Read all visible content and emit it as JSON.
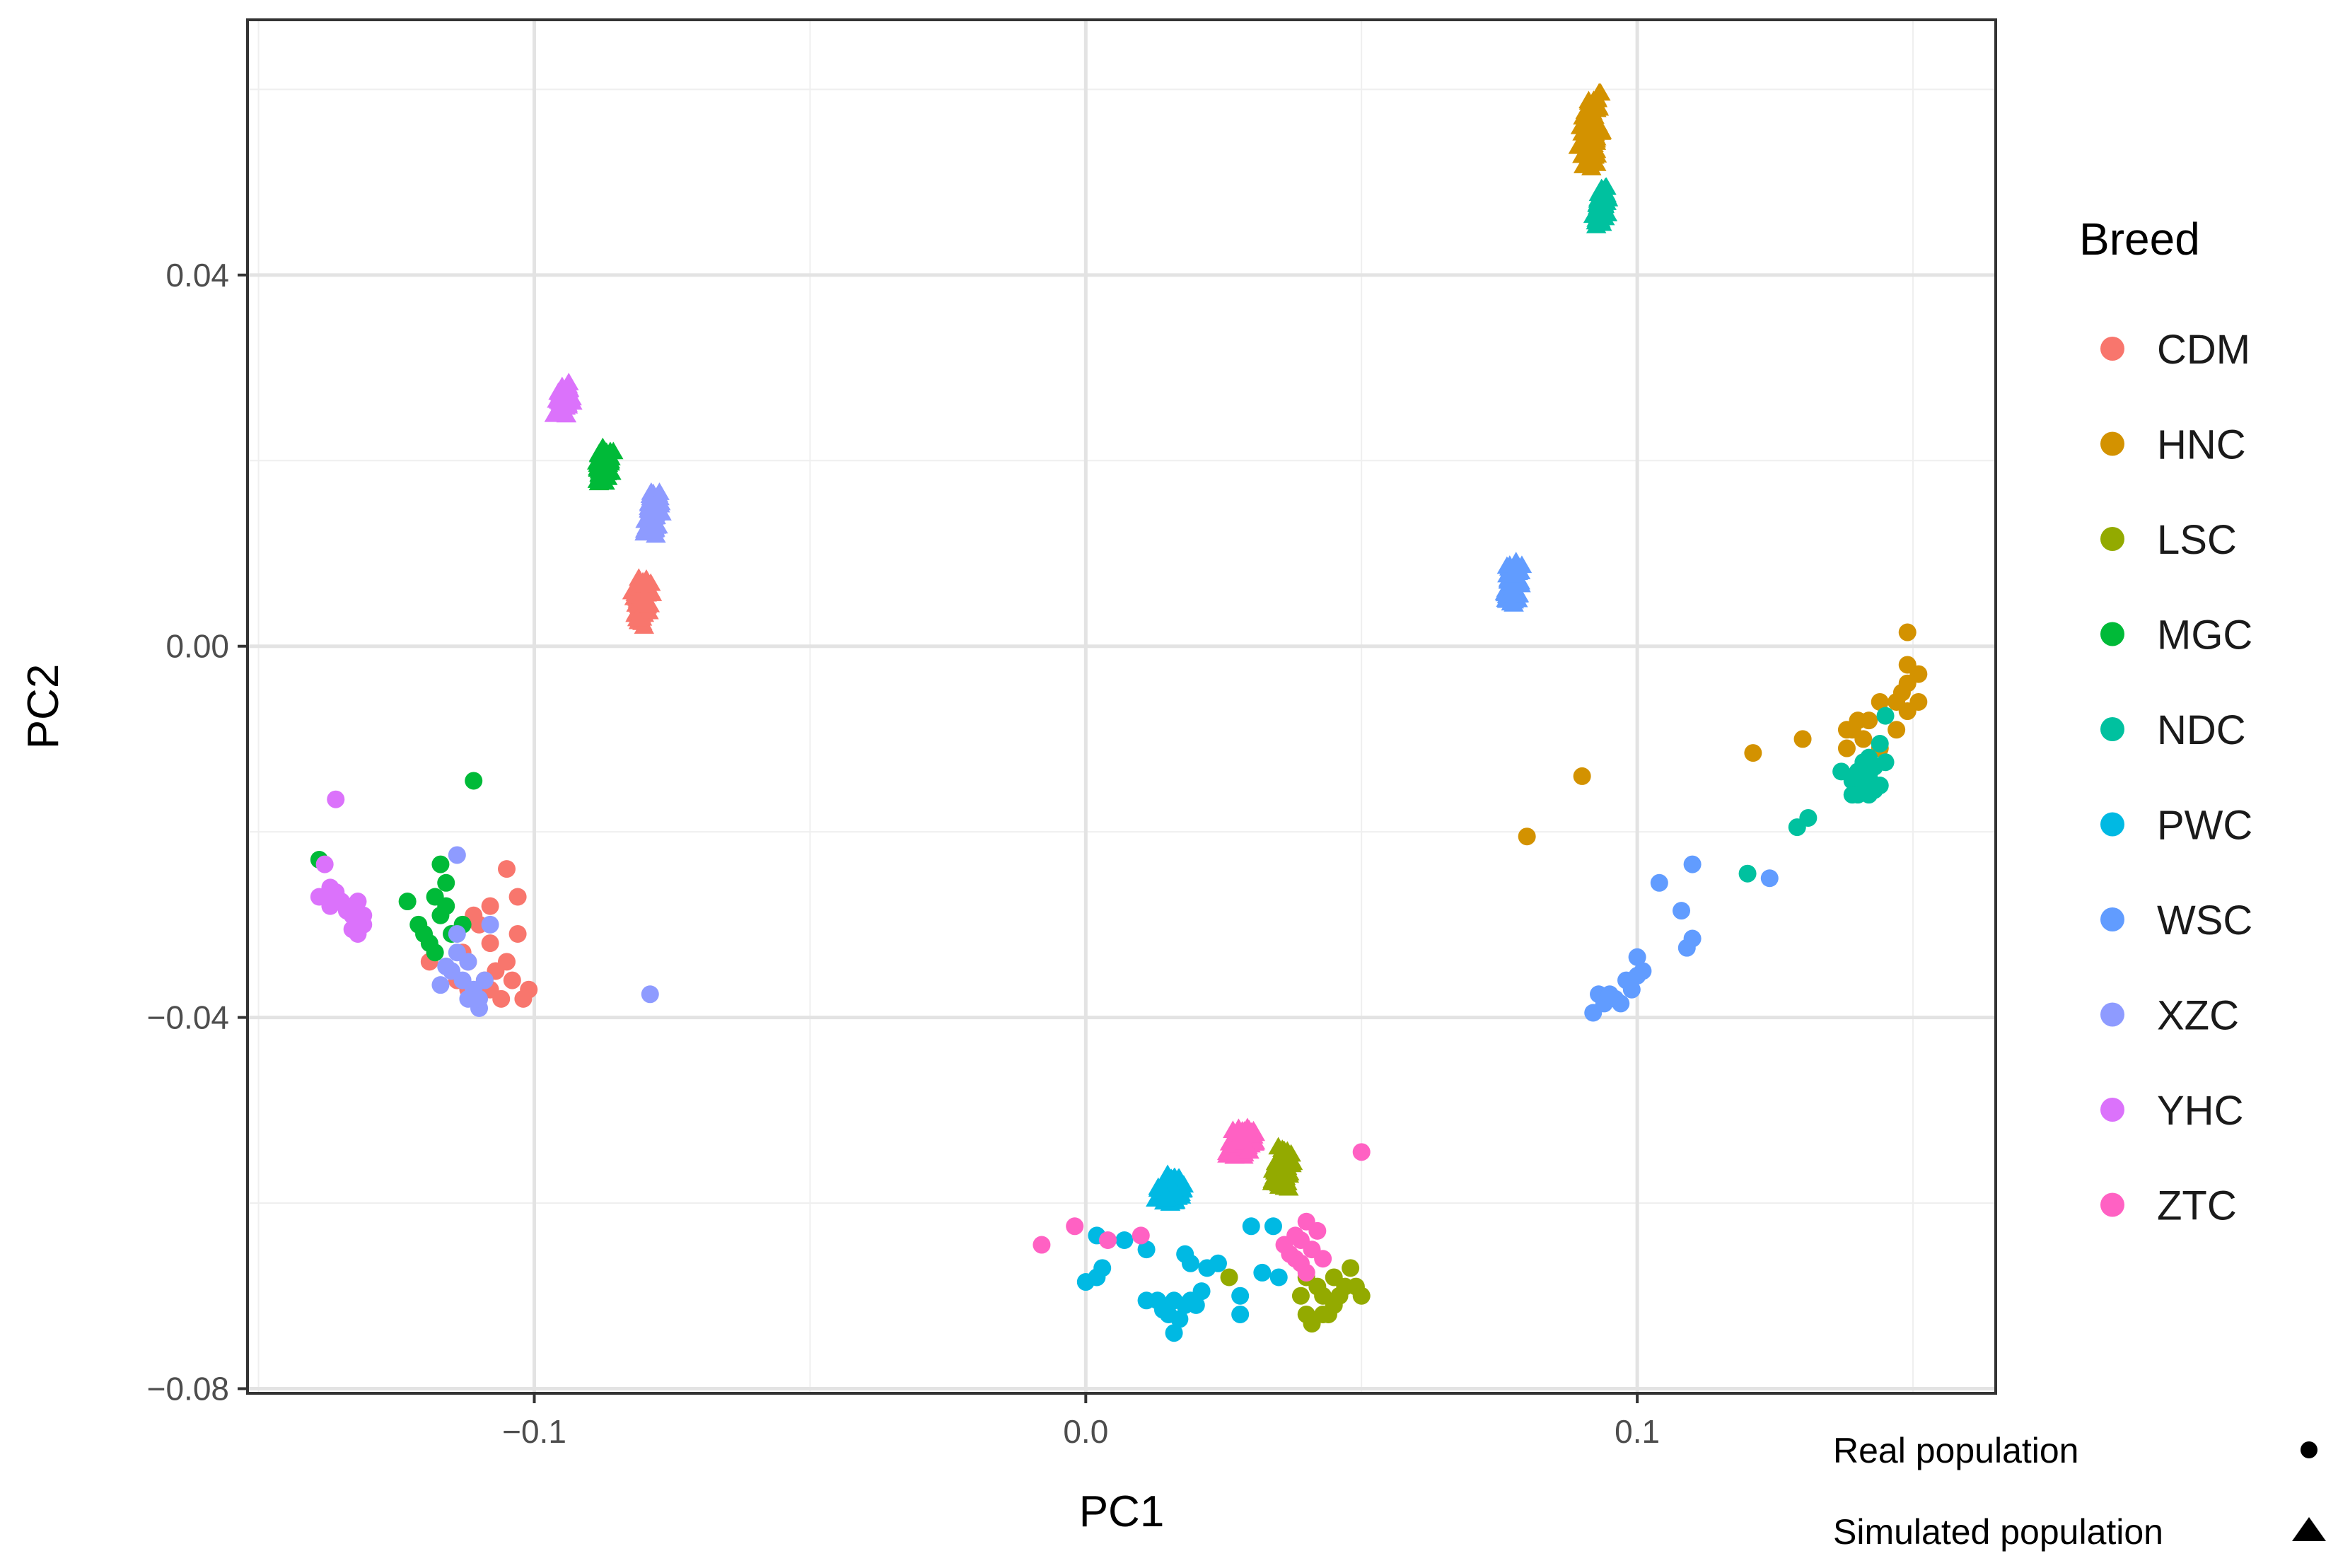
{
  "chart_data": {
    "type": "scatter",
    "xlabel": "PC1",
    "ylabel": "PC2",
    "xlim": [
      -0.152,
      0.165
    ],
    "ylim": [
      -0.0805,
      0.0675
    ],
    "x_ticks": [
      -0.1,
      0.0,
      0.1
    ],
    "x_tick_labels": [
      "−0.1",
      "0.0",
      "0.1"
    ],
    "y_ticks": [
      0.04,
      0.0,
      -0.04,
      -0.08
    ],
    "y_tick_labels": [
      "0.04",
      "0.00",
      "−0.04",
      "−0.08"
    ],
    "grid": true,
    "legend_title": "Breed",
    "legend_position": "right",
    "series": [
      {
        "name": "CDM",
        "color": "#F8766D",
        "simulated": {
          "center": [
            -0.0805,
            0.0048
          ],
          "spread": [
            0.0065,
            0.0095
          ],
          "n": 90
        },
        "real": [
          [
            -0.111,
            -0.029
          ],
          [
            -0.112,
            -0.034
          ],
          [
            -0.113,
            -0.033
          ],
          [
            -0.105,
            -0.024
          ],
          [
            -0.103,
            -0.027
          ],
          [
            -0.107,
            -0.035
          ],
          [
            -0.104,
            -0.036
          ],
          [
            -0.108,
            -0.037
          ],
          [
            -0.106,
            -0.038
          ],
          [
            -0.101,
            -0.037
          ],
          [
            -0.102,
            -0.038
          ],
          [
            -0.109,
            -0.036
          ],
          [
            -0.119,
            -0.034
          ],
          [
            -0.108,
            -0.028
          ],
          [
            -0.11,
            -0.03
          ],
          [
            -0.105,
            -0.034
          ],
          [
            -0.112,
            -0.037
          ],
          [
            -0.114,
            -0.036
          ],
          [
            -0.103,
            -0.031
          ],
          [
            -0.108,
            -0.032
          ]
        ]
      },
      {
        "name": "HNC",
        "color": "#D39200",
        "simulated": {
          "center": [
            0.0918,
            0.0555
          ],
          "spread": [
            0.0075,
            0.0145
          ],
          "n": 110
        },
        "real": [
          [
            0.149,
            0.0015
          ],
          [
            0.149,
            -0.002
          ],
          [
            0.151,
            -0.003
          ],
          [
            0.149,
            -0.004
          ],
          [
            0.151,
            -0.006
          ],
          [
            0.148,
            -0.005
          ],
          [
            0.147,
            -0.006
          ],
          [
            0.144,
            -0.006
          ],
          [
            0.14,
            -0.008
          ],
          [
            0.139,
            -0.009
          ],
          [
            0.141,
            -0.01
          ],
          [
            0.138,
            -0.009
          ],
          [
            0.149,
            -0.007
          ],
          [
            0.147,
            -0.009
          ],
          [
            0.144,
            -0.011
          ],
          [
            0.13,
            -0.01
          ],
          [
            0.121,
            -0.0115
          ],
          [
            0.09,
            -0.014
          ],
          [
            0.08,
            -0.0205
          ],
          [
            0.138,
            -0.011
          ],
          [
            0.142,
            -0.008
          ]
        ]
      },
      {
        "name": "LSC",
        "color": "#93AA00",
        "simulated": {
          "center": [
            0.0355,
            -0.0565
          ],
          "spread": [
            0.0075,
            0.0085
          ],
          "n": 90
        },
        "real": [
          [
            0.04,
            -0.068
          ],
          [
            0.043,
            -0.07
          ],
          [
            0.045,
            -0.071
          ],
          [
            0.047,
            -0.069
          ],
          [
            0.04,
            -0.072
          ],
          [
            0.041,
            -0.073
          ],
          [
            0.043,
            -0.072
          ],
          [
            0.048,
            -0.067
          ],
          [
            0.045,
            -0.068
          ],
          [
            0.042,
            -0.069
          ],
          [
            0.039,
            -0.07
          ],
          [
            0.046,
            -0.07
          ],
          [
            0.049,
            -0.069
          ],
          [
            0.044,
            -0.072
          ],
          [
            0.026,
            -0.068
          ],
          [
            0.05,
            -0.07
          ]
        ]
      },
      {
        "name": "MGC",
        "color": "#00BA38",
        "simulated": {
          "center": [
            -0.0875,
            0.0192
          ],
          "spread": [
            0.0055,
            0.0095
          ],
          "n": 80
        },
        "real": [
          [
            -0.111,
            -0.0145
          ],
          [
            -0.123,
            -0.0275
          ],
          [
            -0.117,
            -0.0235
          ],
          [
            -0.118,
            -0.027
          ],
          [
            -0.121,
            -0.03
          ],
          [
            -0.117,
            -0.029
          ],
          [
            -0.119,
            -0.032
          ],
          [
            -0.115,
            -0.031
          ],
          [
            -0.116,
            -0.028
          ],
          [
            -0.12,
            -0.031
          ],
          [
            -0.139,
            -0.023
          ],
          [
            -0.118,
            -0.033
          ],
          [
            -0.113,
            -0.03
          ],
          [
            -0.116,
            -0.0255
          ]
        ]
      },
      {
        "name": "NDC",
        "color": "#00C19F",
        "simulated": {
          "center": [
            0.0935,
            0.0475
          ],
          "spread": [
            0.0048,
            0.0085
          ],
          "n": 80
        },
        "real": [
          [
            0.139,
            -0.0145
          ],
          [
            0.141,
            -0.015
          ],
          [
            0.142,
            -0.014
          ],
          [
            0.143,
            -0.013
          ],
          [
            0.14,
            -0.016
          ],
          [
            0.139,
            -0.016
          ],
          [
            0.142,
            -0.016
          ],
          [
            0.141,
            -0.0125
          ],
          [
            0.143,
            -0.0155
          ],
          [
            0.145,
            -0.0125
          ],
          [
            0.145,
            -0.0075
          ],
          [
            0.144,
            -0.0105
          ],
          [
            0.137,
            -0.0135
          ],
          [
            0.131,
            -0.0185
          ],
          [
            0.129,
            -0.0195
          ],
          [
            0.144,
            -0.015
          ],
          [
            0.14,
            -0.0135
          ],
          [
            0.12,
            -0.0245
          ],
          [
            0.142,
            -0.012
          ]
        ]
      },
      {
        "name": "PWC",
        "color": "#00B9E3",
        "simulated": {
          "center": [
            0.0155,
            -0.0585
          ],
          "spread": [
            0.0085,
            0.0075
          ],
          "n": 90
        },
        "real": [
          [
            0.002,
            -0.0635
          ],
          [
            0.003,
            -0.067
          ],
          [
            0.002,
            -0.068
          ],
          [
            0.0,
            -0.0685
          ],
          [
            0.007,
            -0.064
          ],
          [
            0.011,
            -0.065
          ],
          [
            0.018,
            -0.0655
          ],
          [
            0.019,
            -0.0665
          ],
          [
            0.022,
            -0.067
          ],
          [
            0.024,
            -0.0665
          ],
          [
            0.03,
            -0.0625
          ],
          [
            0.034,
            -0.0625
          ],
          [
            0.011,
            -0.0705
          ],
          [
            0.014,
            -0.0715
          ],
          [
            0.016,
            -0.0705
          ],
          [
            0.018,
            -0.071
          ],
          [
            0.021,
            -0.0695
          ],
          [
            0.02,
            -0.071
          ],
          [
            0.015,
            -0.072
          ],
          [
            0.013,
            -0.0705
          ],
          [
            0.017,
            -0.0725
          ],
          [
            0.016,
            -0.074
          ],
          [
            0.028,
            -0.07
          ],
          [
            0.028,
            -0.072
          ],
          [
            0.032,
            -0.0675
          ],
          [
            0.035,
            -0.068
          ],
          [
            0.019,
            -0.0705
          ]
        ]
      },
      {
        "name": "WSC",
        "color": "#619CFF",
        "simulated": {
          "center": [
            0.0775,
            0.0065
          ],
          "spread": [
            0.0065,
            0.0115
          ],
          "n": 90
        },
        "real": [
          [
            0.093,
            -0.0375
          ],
          [
            0.092,
            -0.0395
          ],
          [
            0.096,
            -0.038
          ],
          [
            0.097,
            -0.0385
          ],
          [
            0.098,
            -0.036
          ],
          [
            0.1,
            -0.0355
          ],
          [
            0.101,
            -0.035
          ],
          [
            0.1,
            -0.0335
          ],
          [
            0.094,
            -0.0385
          ],
          [
            0.095,
            -0.0375
          ],
          [
            0.104,
            -0.0255
          ],
          [
            0.108,
            -0.0285
          ],
          [
            0.11,
            -0.0235
          ],
          [
            0.109,
            -0.0325
          ],
          [
            0.11,
            -0.0315
          ],
          [
            0.124,
            -0.025
          ],
          [
            0.099,
            -0.037
          ]
        ]
      },
      {
        "name": "XZC",
        "color": "#8E9BFF",
        "simulated": {
          "center": [
            -0.0785,
            0.0145
          ],
          "spread": [
            0.0055,
            0.0105
          ],
          "n": 80
        },
        "real": [
          [
            -0.114,
            -0.0225
          ],
          [
            -0.108,
            -0.03
          ],
          [
            -0.114,
            -0.031
          ],
          [
            -0.112,
            -0.034
          ],
          [
            -0.115,
            -0.035
          ],
          [
            -0.113,
            -0.036
          ],
          [
            -0.111,
            -0.037
          ],
          [
            -0.112,
            -0.038
          ],
          [
            -0.11,
            -0.039
          ],
          [
            -0.109,
            -0.036
          ],
          [
            -0.117,
            -0.0365
          ],
          [
            -0.114,
            -0.033
          ],
          [
            -0.116,
            -0.0345
          ],
          [
            -0.079,
            -0.0375
          ],
          [
            -0.11,
            -0.038
          ]
        ]
      },
      {
        "name": "YHC",
        "color": "#DB72FB",
        "simulated": {
          "center": [
            -0.0945,
            0.0265
          ],
          "spread": [
            0.0065,
            0.0055
          ],
          "n": 70
        },
        "real": [
          [
            -0.136,
            -0.0165
          ],
          [
            -0.138,
            -0.0235
          ],
          [
            -0.137,
            -0.026
          ],
          [
            -0.138,
            -0.027
          ],
          [
            -0.136,
            -0.0265
          ],
          [
            -0.135,
            -0.0275
          ],
          [
            -0.134,
            -0.028
          ],
          [
            -0.133,
            -0.029
          ],
          [
            -0.132,
            -0.0275
          ],
          [
            -0.131,
            -0.029
          ],
          [
            -0.133,
            -0.0305
          ],
          [
            -0.132,
            -0.031
          ],
          [
            -0.134,
            -0.0285
          ],
          [
            -0.137,
            -0.028
          ],
          [
            -0.131,
            -0.03
          ],
          [
            -0.139,
            -0.027
          ]
        ]
      },
      {
        "name": "ZTC",
        "color": "#FF61C3",
        "simulated": {
          "center": [
            0.0285,
            -0.0535
          ],
          "spread": [
            0.0095,
            0.0065
          ],
          "n": 100
        },
        "real": [
          [
            -0.008,
            -0.0645
          ],
          [
            -0.002,
            -0.0625
          ],
          [
            0.004,
            -0.064
          ],
          [
            0.01,
            -0.0635
          ],
          [
            0.038,
            -0.066
          ],
          [
            0.039,
            -0.064
          ],
          [
            0.041,
            -0.065
          ],
          [
            0.04,
            -0.062
          ],
          [
            0.037,
            -0.0655
          ],
          [
            0.042,
            -0.063
          ],
          [
            0.036,
            -0.0645
          ],
          [
            0.039,
            -0.0665
          ],
          [
            0.043,
            -0.066
          ],
          [
            0.038,
            -0.0635
          ],
          [
            0.05,
            -0.0545
          ],
          [
            0.04,
            -0.0675
          ]
        ]
      }
    ],
    "shape_legend": [
      {
        "label": "Real population",
        "marker": "circle"
      },
      {
        "label": "Simulated population",
        "marker": "triangle"
      }
    ]
  }
}
